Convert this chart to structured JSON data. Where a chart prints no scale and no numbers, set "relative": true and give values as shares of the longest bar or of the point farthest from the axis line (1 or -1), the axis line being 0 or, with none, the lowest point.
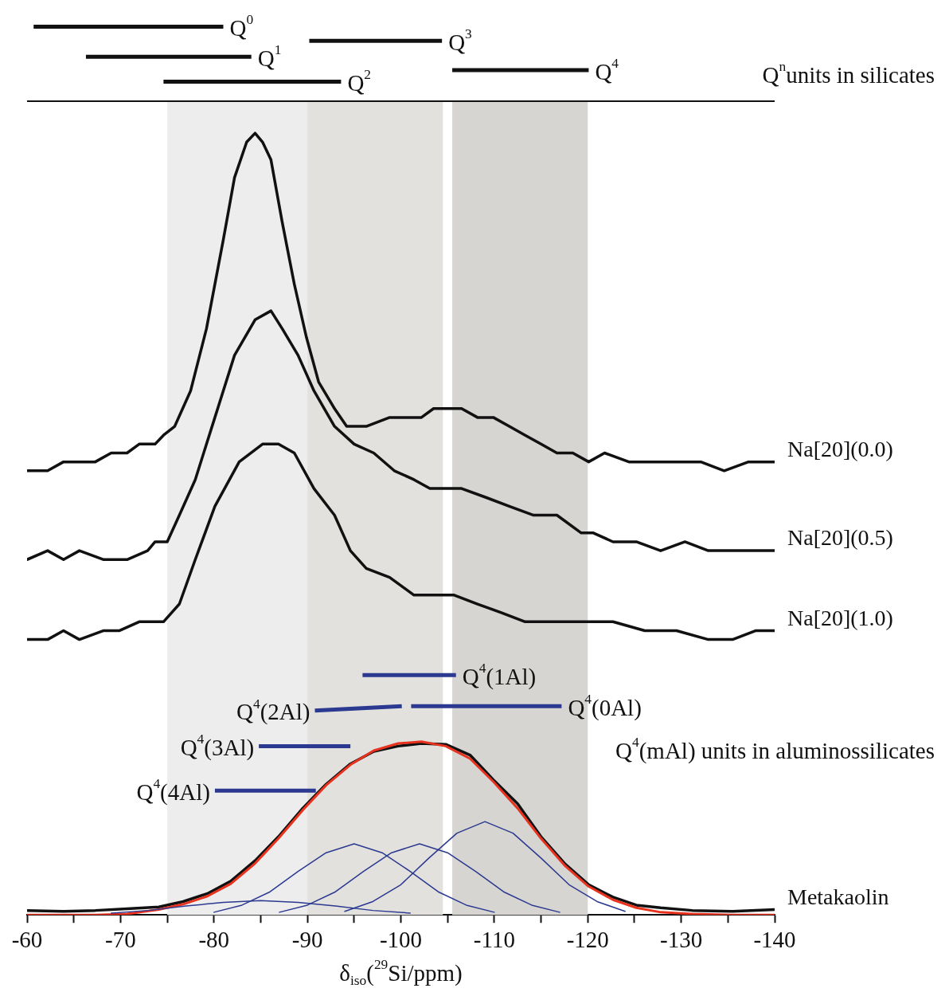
{
  "chart_data": {
    "type": "line",
    "relative": true,
    "xlabel": "δ$_{iso}$($^{29}$Si/ppm)",
    "xlim": [
      -60,
      -140
    ],
    "tick_labels": "x",
    "xticks": [
      -60,
      {
        "value": -65,
        "label": null
      },
      -70,
      {
        "value": -75,
        "label": null
      },
      -80,
      {
        "value": -85,
        "label": null
      },
      -90,
      {
        "value": -95,
        "label": null
      },
      -100,
      {
        "value": -105,
        "label": null
      },
      -110,
      {
        "value": -115,
        "label": null
      },
      -120,
      {
        "value": -125,
        "label": null
      },
      -130,
      {
        "value": -135,
        "label": null
      },
      -140
    ],
    "ref_lines": [
      {
        "axis": "y",
        "value": 0.916,
        "color": "#111111"
      }
    ],
    "bands": [
      {
        "axis": "x",
        "from": -75,
        "to": -90,
        "color": "#eeeded"
      },
      {
        "axis": "x",
        "from": -90,
        "to": -104.5,
        "color": "#e2e1de"
      },
      {
        "axis": "x",
        "from": -105.5,
        "to": -120,
        "color": "#d6d5d1"
      }
    ],
    "series": [
      {
        "color": "#111111",
        "x": [
          -60.7,
          -81.0
        ],
        "values": [
          1.0,
          1.0
        ]
      },
      {
        "color": "#111111",
        "x": [
          -66.3,
          -84.0
        ],
        "values": [
          0.966,
          0.966
        ]
      },
      {
        "color": "#111111",
        "x": [
          -74.6,
          -93.6
        ],
        "values": [
          0.938,
          0.938
        ]
      },
      {
        "color": "#111111",
        "x": [
          -90.2,
          -104.4
        ],
        "values": [
          0.984,
          0.984
        ]
      },
      {
        "color": "#111111",
        "x": [
          -105.5,
          -120.1
        ],
        "values": [
          0.951,
          0.951
        ]
      },
      {
        "name": "Na[20](0.0)",
        "color": "#111111",
        "x": [
          -60,
          -62.2,
          -63.9,
          -64.8,
          -65.6,
          -67.3,
          -69.0,
          -70.7,
          -72.0,
          -73.7,
          -74.6,
          -75.8,
          -77.5,
          -79.2,
          -81.0,
          -82.2,
          -83.5,
          -84.4,
          -85.2,
          -86.1,
          -87.3,
          -88.6,
          -89.9,
          -91.2,
          -92.9,
          -94.2,
          -96.3,
          -98.8,
          -100.5,
          -102.2,
          -103.5,
          -104.8,
          -106.5,
          -108.2,
          -109.9,
          -111.6,
          -113.3,
          -115.0,
          -116.7,
          -118.4,
          -120.1,
          -121.8,
          -124.4,
          -127.0,
          -129.5,
          -132.1,
          -134.6,
          -137.2,
          -140
        ],
        "values": [
          0.5,
          0.5,
          0.51,
          0.51,
          0.51,
          0.51,
          0.52,
          0.52,
          0.53,
          0.53,
          0.54,
          0.55,
          0.59,
          0.66,
          0.76,
          0.83,
          0.87,
          0.88,
          0.87,
          0.85,
          0.78,
          0.71,
          0.65,
          0.6,
          0.57,
          0.55,
          0.55,
          0.56,
          0.56,
          0.56,
          0.57,
          0.57,
          0.57,
          0.56,
          0.56,
          0.55,
          0.54,
          0.53,
          0.52,
          0.52,
          0.51,
          0.52,
          0.51,
          0.51,
          0.51,
          0.51,
          0.5,
          0.51,
          0.51
        ]
      },
      {
        "name": "Na[20](0.5)",
        "color": "#111111",
        "x": [
          -60,
          -62.2,
          -63.9,
          -65.6,
          -68.2,
          -70.7,
          -72.9,
          -73.7,
          -75.0,
          -76.3,
          -78.0,
          -80.1,
          -82.2,
          -84.4,
          -86.1,
          -87.3,
          -89.0,
          -90.7,
          -92.9,
          -95.0,
          -97.1,
          -99.3,
          -101.4,
          -103.1,
          -104.8,
          -106.5,
          -109.1,
          -111.6,
          -114.2,
          -116.7,
          -119.3,
          -120.6,
          -122.7,
          -125.2,
          -127.8,
          -130.4,
          -132.9,
          -135.5,
          -137.6,
          -140
        ],
        "values": [
          0.4,
          0.41,
          0.4,
          0.41,
          0.4,
          0.4,
          0.41,
          0.42,
          0.42,
          0.45,
          0.49,
          0.56,
          0.63,
          0.67,
          0.68,
          0.66,
          0.63,
          0.59,
          0.55,
          0.53,
          0.52,
          0.5,
          0.49,
          0.48,
          0.48,
          0.48,
          0.47,
          0.46,
          0.45,
          0.45,
          0.43,
          0.43,
          0.42,
          0.42,
          0.41,
          0.42,
          0.41,
          0.41,
          0.41,
          0.41
        ]
      },
      {
        "name": "Na[20](1.0)",
        "color": "#111111",
        "x": [
          -60,
          -62.2,
          -63.9,
          -65.6,
          -68.2,
          -69.9,
          -72.0,
          -74.6,
          -76.3,
          -78.0,
          -80.1,
          -82.7,
          -85.2,
          -86.9,
          -88.6,
          -90.7,
          -92.9,
          -94.6,
          -96.3,
          -98.8,
          -101.4,
          -103.5,
          -105.7,
          -108.2,
          -110.8,
          -113.3,
          -116.7,
          -120.1,
          -122.7,
          -126.1,
          -129.5,
          -132.9,
          -135.5,
          -138.0,
          -140
        ],
        "values": [
          0.31,
          0.31,
          0.32,
          0.31,
          0.32,
          0.32,
          0.33,
          0.33,
          0.35,
          0.4,
          0.46,
          0.51,
          0.53,
          0.53,
          0.52,
          0.48,
          0.45,
          0.41,
          0.39,
          0.38,
          0.36,
          0.36,
          0.36,
          0.35,
          0.34,
          0.33,
          0.33,
          0.33,
          0.33,
          0.32,
          0.32,
          0.31,
          0.31,
          0.32,
          0.32
        ]
      },
      {
        "name": "Metakaolin",
        "color": "#111111",
        "x": [
          -60,
          -63.9,
          -67.3,
          -70.7,
          -74.1,
          -76.7,
          -79.3,
          -81.8,
          -84.4,
          -86.9,
          -89.5,
          -92.0,
          -94.6,
          -97.1,
          -99.7,
          -102.2,
          -104.8,
          -107.4,
          -109.9,
          -112.5,
          -115.0,
          -117.6,
          -120.1,
          -122.7,
          -125.2,
          -127.8,
          -131.2,
          -135.5,
          -140
        ],
        "values": [
          0.005,
          0.004,
          0.005,
          0.007,
          0.009,
          0.015,
          0.024,
          0.038,
          0.061,
          0.088,
          0.12,
          0.147,
          0.17,
          0.184,
          0.19,
          0.193,
          0.192,
          0.18,
          0.152,
          0.125,
          0.088,
          0.057,
          0.034,
          0.02,
          0.011,
          0.008,
          0.005,
          0.004,
          0.006
        ]
      },
      {
        "color": "#e8321e",
        "x": [
          -60,
          -63.9,
          -67.3,
          -70.7,
          -74.1,
          -76.7,
          -79.3,
          -81.8,
          -84.4,
          -86.9,
          -89.5,
          -92.0,
          -94.6,
          -97.1,
          -99.7,
          -102.2,
          -104.8,
          -107.4,
          -109.9,
          -112.5,
          -115.0,
          -117.6,
          -120.1,
          -122.7,
          -125.2,
          -127.8,
          -131.2,
          -135.5,
          -140
        ],
        "values": [
          0.0,
          0.0,
          0.0,
          0.001,
          0.006,
          0.012,
          0.021,
          0.035,
          0.058,
          0.086,
          0.118,
          0.146,
          0.169,
          0.185,
          0.193,
          0.195,
          0.19,
          0.176,
          0.15,
          0.12,
          0.086,
          0.055,
          0.032,
          0.017,
          0.008,
          0.003,
          0.001,
          0.0,
          0.0
        ]
      },
      {
        "color": "#2b3990",
        "x": [
          -69,
          -73,
          -77,
          -81,
          -85,
          -89,
          -93,
          -97,
          -101
        ],
        "values": [
          0.002,
          0.005,
          0.01,
          0.014,
          0.016,
          0.014,
          0.01,
          0.005,
          0.002
        ]
      },
      {
        "color": "#2b3990",
        "x": [
          -80,
          -83,
          -86,
          -89,
          -92,
          -95,
          -98,
          -101,
          -104,
          -107,
          -110
        ],
        "values": [
          0.003,
          0.011,
          0.026,
          0.049,
          0.07,
          0.08,
          0.07,
          0.049,
          0.026,
          0.011,
          0.003
        ]
      },
      {
        "color": "#2b3990",
        "x": [
          -87,
          -90,
          -93,
          -96,
          -99,
          -102,
          -105,
          -108,
          -111,
          -114,
          -117
        ],
        "values": [
          0.003,
          0.011,
          0.026,
          0.049,
          0.07,
          0.08,
          0.07,
          0.049,
          0.026,
          0.011,
          0.003
        ]
      },
      {
        "color": "#2b3990",
        "x": [
          -94,
          -97,
          -100,
          -103,
          -106,
          -109,
          -112,
          -115,
          -118,
          -121,
          -124
        ],
        "values": [
          0.004,
          0.015,
          0.034,
          0.064,
          0.092,
          0.105,
          0.092,
          0.064,
          0.034,
          0.015,
          0.004
        ]
      },
      {
        "color": "#2b3990",
        "x": [
          -95.9,
          -105.9
        ],
        "values": [
          0.27,
          0.27
        ]
      },
      {
        "color": "#2b3990",
        "x": [
          -90.8,
          -100.1
        ],
        "values": [
          0.23,
          0.235
        ]
      },
      {
        "color": "#2b3990",
        "x": [
          -101.1,
          -117.2
        ],
        "values": [
          0.235,
          0.235
        ]
      },
      {
        "color": "#2b3990",
        "x": [
          -84.8,
          -94.6
        ],
        "values": [
          0.19,
          0.19
        ]
      },
      {
        "color": "#2b3990",
        "x": [
          -80.1,
          -90.9
        ],
        "values": [
          0.14,
          0.14
        ]
      }
    ],
    "annotations": [
      {
        "text": "Q$^{0}$",
        "x": -81.0,
        "y": 1.0
      },
      {
        "text": "Q$^{1}$",
        "x": -84.0,
        "y": 0.966
      },
      {
        "text": "Q$^{2}$",
        "x": -93.6,
        "y": 0.938
      },
      {
        "text": "Q$^{3}$",
        "x": -104.4,
        "y": 0.984
      },
      {
        "text": "Q$^{4}$",
        "x": -120.1,
        "y": 0.951
      },
      "Q$^{n}$units in silicates",
      {
        "text": "Q$^{4}$(1Al)",
        "x": -105.9,
        "y": 0.27
      },
      {
        "text": "Q$^{4}$(0Al)",
        "x": -117.2,
        "y": 0.235
      },
      {
        "text": "Q$^{4}$(2Al)",
        "x": -90.8,
        "y": 0.23
      },
      {
        "text": "Q$^{4}$(3Al)",
        "x": -84.8,
        "y": 0.19
      },
      "Q$^{4}$(mAl) units in aluminossilicates",
      {
        "text": "Q$^{4}$(4Al)",
        "x": -80.1,
        "y": 0.14
      }
    ]
  }
}
